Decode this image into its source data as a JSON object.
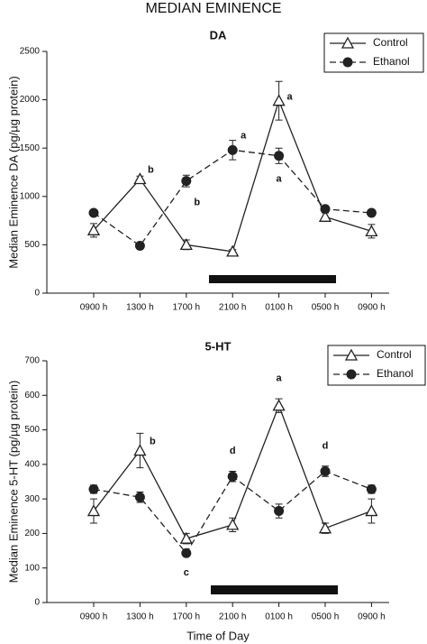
{
  "title": "MEDIAN EMINENCE",
  "chart_data": [
    {
      "type": "line",
      "title": "DA",
      "ylabel": "Median Eminence DA (pg/µg protein)",
      "categories": [
        "0900 h",
        "1300 h",
        "1700 h",
        "2100 h",
        "0100 h",
        "0500 h",
        "0900 h"
      ],
      "ylim": [
        0,
        2500
      ],
      "yticks": [
        0,
        500,
        1000,
        1500,
        2000,
        2500
      ],
      "legend": "upper right",
      "series": [
        {
          "name": "Control",
          "color": "#222222",
          "marker": "open-triangle",
          "linestyle": "solid",
          "values": [
            650,
            1180,
            500,
            430,
            1990,
            790,
            640
          ],
          "errors": [
            70,
            30,
            50,
            20,
            200,
            40,
            70
          ]
        },
        {
          "name": "Ethanol",
          "color": "#222222",
          "marker": "filled-circle",
          "linestyle": "dashed",
          "values": [
            830,
            490,
            1160,
            1480,
            1420,
            870,
            830
          ],
          "errors": [
            20,
            20,
            60,
            100,
            80,
            30,
            20
          ]
        }
      ],
      "annotations": [
        "b",
        "b",
        "a",
        "a",
        "a"
      ]
    },
    {
      "type": "line",
      "title": "5-HT",
      "ylabel": "Median Eminence 5-HT (pg/µg protein)",
      "xlabel": "Time of Day",
      "categories": [
        "0900 h",
        "1300 h",
        "1700 h",
        "2100 h",
        "0100 h",
        "0500 h",
        "0900 h"
      ],
      "ylim": [
        0,
        700
      ],
      "yticks": [
        0,
        100,
        200,
        300,
        400,
        500,
        600,
        700
      ],
      "legend": "upper right",
      "series": [
        {
          "name": "Control",
          "color": "#222222",
          "marker": "open-triangle",
          "linestyle": "solid",
          "values": [
            265,
            440,
            185,
            225,
            570,
            215,
            265
          ],
          "errors": [
            35,
            50,
            15,
            20,
            20,
            15,
            35
          ]
        },
        {
          "name": "Ethanol",
          "color": "#222222",
          "marker": "filled-circle",
          "linestyle": "dashed",
          "values": [
            328,
            305,
            143,
            365,
            265,
            380,
            328
          ],
          "errors": [
            12,
            15,
            5,
            15,
            20,
            15,
            12
          ]
        }
      ],
      "annotations": [
        "b",
        "c",
        "d",
        "a",
        "d"
      ]
    }
  ]
}
